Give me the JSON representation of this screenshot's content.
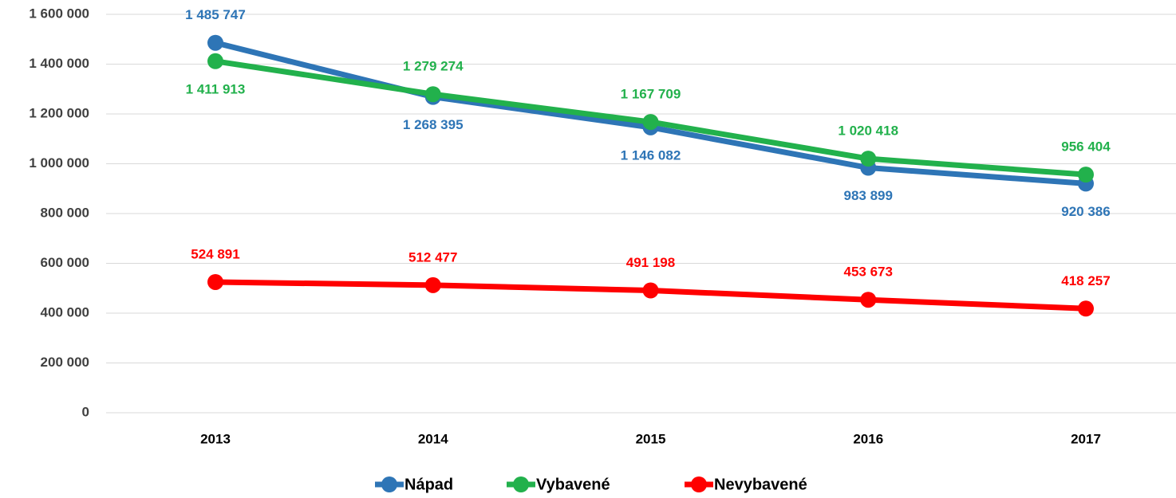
{
  "chart_data": {
    "type": "line",
    "categories": [
      "2013",
      "2014",
      "2015",
      "2016",
      "2017"
    ],
    "series": [
      {
        "name": "Nápad",
        "color": "#2e75b6",
        "values": [
          1485747,
          1268395,
          1146082,
          983899,
          920386
        ],
        "value_labels": [
          "1 485 747",
          "1 268 395",
          "1 146 082",
          "983 899",
          "920 386"
        ]
      },
      {
        "name": "Vybavené",
        "color": "#22b14c",
        "values": [
          1411913,
          1279274,
          1167709,
          1020418,
          956404
        ],
        "value_labels": [
          "1 411 913",
          "1 279 274",
          "1 167 709",
          "1 020 418",
          "956 404"
        ]
      },
      {
        "name": "Nevybavené",
        "color": "#ff0000",
        "values": [
          524891,
          512477,
          491198,
          453673,
          418257
        ],
        "value_labels": [
          "524 891",
          "512 477",
          "491 198",
          "453 673",
          "418 257"
        ]
      }
    ],
    "ylim": [
      0,
      1600000
    ],
    "yticks": [
      0,
      {
        "value": 200000,
        "label": "200 000"
      },
      {
        "value": 400000,
        "label": "400 000"
      },
      {
        "value": 600000,
        "label": "600 000"
      },
      {
        "value": 800000,
        "label": "800 000"
      },
      {
        "value": 1000000,
        "label": "1 000 000"
      },
      {
        "value": 1200000,
        "label": "1 200 000"
      },
      {
        "value": 1400000,
        "label": "1 400 000"
      },
      {
        "value": 1600000,
        "label": "1 600 000"
      }
    ],
    "grid": true,
    "legend": "bottom"
  }
}
